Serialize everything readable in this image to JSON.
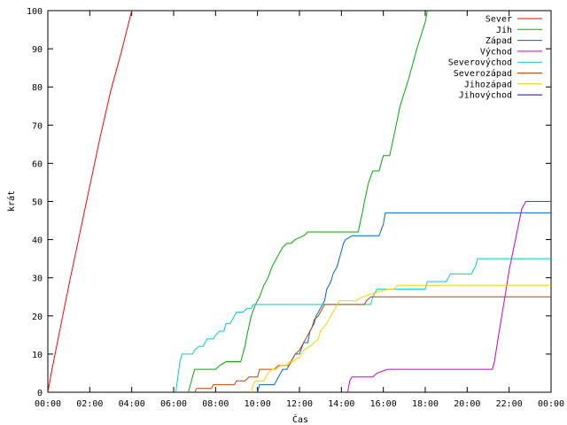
{
  "chart_data": {
    "type": "line",
    "title": "",
    "xlabel": "Čas",
    "ylabel": "krát",
    "xlim": [
      0,
      24
    ],
    "ylim": [
      0,
      100
    ],
    "x_ticks": [
      {
        "value": 0,
        "label": "00:00"
      },
      {
        "value": 2,
        "label": "02:00"
      },
      {
        "value": 4,
        "label": "04:00"
      },
      {
        "value": 6,
        "label": "06:00"
      },
      {
        "value": 8,
        "label": "08:00"
      },
      {
        "value": 10,
        "label": "10:00"
      },
      {
        "value": 12,
        "label": "12:00"
      },
      {
        "value": 14,
        "label": "14:00"
      },
      {
        "value": 16,
        "label": "16:00"
      },
      {
        "value": 18,
        "label": "18:00"
      },
      {
        "value": 20,
        "label": "20:00"
      },
      {
        "value": 22,
        "label": "22:00"
      },
      {
        "value": 24,
        "label": "00:00"
      }
    ],
    "y_ticks": [
      {
        "value": 0,
        "label": "0"
      },
      {
        "value": 10,
        "label": "10"
      },
      {
        "value": 20,
        "label": "20"
      },
      {
        "value": 30,
        "label": "30"
      },
      {
        "value": 40,
        "label": "40"
      },
      {
        "value": 50,
        "label": "50"
      },
      {
        "value": 60,
        "label": "60"
      },
      {
        "value": 70,
        "label": "70"
      },
      {
        "value": 80,
        "label": "80"
      },
      {
        "value": 90,
        "label": "90"
      },
      {
        "value": 100,
        "label": "100"
      }
    ],
    "grid": false,
    "legend_position": "top-right",
    "series": [
      {
        "name": "Sever",
        "color": "#ff0000",
        "points": [
          [
            0.0,
            0
          ],
          [
            0.2,
            6
          ],
          [
            0.6,
            17
          ],
          [
            1.0,
            28
          ],
          [
            1.5,
            41
          ],
          [
            2.0,
            54
          ],
          [
            2.5,
            67
          ],
          [
            3.0,
            79
          ],
          [
            3.5,
            89
          ],
          [
            4.0,
            100
          ]
        ]
      },
      {
        "name": "Jih",
        "color": "#00aa00",
        "points": [
          [
            6.7,
            0
          ],
          [
            6.9,
            4
          ],
          [
            7.0,
            6
          ],
          [
            8.0,
            6
          ],
          [
            8.2,
            7
          ],
          [
            8.5,
            8
          ],
          [
            9.2,
            8
          ],
          [
            9.4,
            12
          ],
          [
            9.5,
            15
          ],
          [
            9.7,
            20
          ],
          [
            9.9,
            23
          ],
          [
            10.1,
            25
          ],
          [
            10.3,
            28
          ],
          [
            10.5,
            30
          ],
          [
            10.7,
            33
          ],
          [
            10.9,
            35
          ],
          [
            11.0,
            36
          ],
          [
            11.2,
            38
          ],
          [
            11.4,
            39
          ],
          [
            11.6,
            39
          ],
          [
            11.8,
            40
          ],
          [
            12.2,
            41
          ],
          [
            12.4,
            42
          ],
          [
            14.0,
            42
          ],
          [
            14.8,
            42
          ],
          [
            15.0,
            47
          ],
          [
            15.1,
            50
          ],
          [
            15.3,
            55
          ],
          [
            15.5,
            58
          ],
          [
            15.8,
            58
          ],
          [
            16.0,
            62
          ],
          [
            16.3,
            62
          ],
          [
            16.5,
            67
          ],
          [
            16.8,
            75
          ],
          [
            17.2,
            82
          ],
          [
            17.6,
            90
          ],
          [
            18.0,
            97
          ],
          [
            18.1,
            100
          ]
        ]
      },
      {
        "name": "Západ",
        "color": "#0066cc",
        "points": [
          [
            10.0,
            0
          ],
          [
            10.1,
            2
          ],
          [
            10.8,
            2
          ],
          [
            11.0,
            4
          ],
          [
            11.2,
            6
          ],
          [
            11.4,
            6
          ],
          [
            11.6,
            8
          ],
          [
            11.8,
            10
          ],
          [
            12.0,
            10
          ],
          [
            12.2,
            13
          ],
          [
            12.4,
            13
          ],
          [
            12.5,
            16
          ],
          [
            12.7,
            18
          ],
          [
            12.8,
            20
          ],
          [
            13.0,
            22
          ],
          [
            13.2,
            24
          ],
          [
            13.3,
            27
          ],
          [
            13.5,
            29
          ],
          [
            13.6,
            31
          ],
          [
            13.8,
            33
          ],
          [
            13.9,
            35
          ],
          [
            14.0,
            37
          ],
          [
            14.1,
            39
          ],
          [
            14.2,
            40
          ],
          [
            14.5,
            41
          ],
          [
            15.8,
            41
          ],
          [
            16.0,
            44
          ],
          [
            16.1,
            47
          ],
          [
            24.0,
            47
          ]
        ]
      },
      {
        "name": "Východ",
        "color": "#cc00cc",
        "points": [
          [
            14.3,
            0
          ],
          [
            14.4,
            3
          ],
          [
            14.5,
            4
          ],
          [
            15.5,
            4
          ],
          [
            15.7,
            5
          ],
          [
            16.2,
            6
          ],
          [
            21.2,
            6
          ],
          [
            21.3,
            8
          ],
          [
            21.5,
            15
          ],
          [
            21.8,
            25
          ],
          [
            22.0,
            32
          ],
          [
            22.3,
            40
          ],
          [
            22.6,
            48
          ],
          [
            22.8,
            50
          ],
          [
            24.0,
            50
          ]
        ]
      },
      {
        "name": "Severovýchod",
        "color": "#00cccc",
        "points": [
          [
            6.1,
            0
          ],
          [
            6.2,
            4
          ],
          [
            6.3,
            8
          ],
          [
            6.4,
            10
          ],
          [
            6.9,
            10
          ],
          [
            7.0,
            11
          ],
          [
            7.2,
            12
          ],
          [
            7.4,
            12
          ],
          [
            7.6,
            14
          ],
          [
            7.9,
            14
          ],
          [
            8.0,
            15
          ],
          [
            8.2,
            16
          ],
          [
            8.4,
            16
          ],
          [
            8.5,
            18
          ],
          [
            8.7,
            18
          ],
          [
            8.9,
            20
          ],
          [
            9.0,
            21
          ],
          [
            9.3,
            21
          ],
          [
            9.5,
            22
          ],
          [
            9.7,
            22
          ],
          [
            9.8,
            23
          ],
          [
            15.4,
            23
          ],
          [
            15.5,
            25
          ],
          [
            15.7,
            27
          ],
          [
            18.0,
            27
          ],
          [
            18.1,
            29
          ],
          [
            19.0,
            29
          ],
          [
            19.2,
            31
          ],
          [
            20.2,
            31
          ],
          [
            20.4,
            33
          ],
          [
            20.5,
            35
          ],
          [
            24.0,
            35
          ]
        ]
      },
      {
        "name": "Severozápad",
        "color": "#bb4400",
        "points": [
          [
            7.0,
            0
          ],
          [
            7.1,
            1
          ],
          [
            7.8,
            1
          ],
          [
            7.9,
            2
          ],
          [
            8.9,
            2
          ],
          [
            9.0,
            3
          ],
          [
            9.4,
            3
          ],
          [
            9.6,
            4
          ],
          [
            10.0,
            4
          ],
          [
            10.1,
            6
          ],
          [
            10.8,
            6
          ],
          [
            11.0,
            7
          ],
          [
            11.5,
            7
          ],
          [
            11.6,
            8
          ],
          [
            11.8,
            10
          ],
          [
            12.0,
            11
          ],
          [
            12.2,
            13
          ],
          [
            12.4,
            15
          ],
          [
            12.6,
            17
          ],
          [
            12.7,
            19
          ],
          [
            12.9,
            20
          ],
          [
            13.0,
            21
          ],
          [
            13.2,
            23
          ],
          [
            15.1,
            23
          ],
          [
            15.2,
            24
          ],
          [
            15.4,
            25
          ],
          [
            24.0,
            25
          ]
        ]
      },
      {
        "name": "Jihozápad",
        "color": "#ffcc00",
        "points": [
          [
            9.7,
            0
          ],
          [
            9.8,
            2
          ],
          [
            9.9,
            3
          ],
          [
            10.3,
            3
          ],
          [
            10.5,
            5
          ],
          [
            10.7,
            6
          ],
          [
            10.9,
            6
          ],
          [
            11.1,
            7
          ],
          [
            11.4,
            7
          ],
          [
            11.5,
            8
          ],
          [
            11.7,
            8
          ],
          [
            11.9,
            9
          ],
          [
            12.0,
            9
          ],
          [
            12.2,
            11
          ],
          [
            12.5,
            12
          ],
          [
            12.7,
            13
          ],
          [
            12.9,
            14
          ],
          [
            13.0,
            16
          ],
          [
            13.3,
            18
          ],
          [
            13.5,
            20
          ],
          [
            13.7,
            22
          ],
          [
            13.9,
            24
          ],
          [
            14.7,
            24
          ],
          [
            15.0,
            25
          ],
          [
            15.6,
            26
          ],
          [
            16.2,
            27
          ],
          [
            16.5,
            27
          ],
          [
            16.7,
            28
          ],
          [
            24.0,
            28
          ]
        ]
      },
      {
        "name": "Jihovýchod",
        "color": "#2200aa",
        "points": []
      }
    ]
  }
}
